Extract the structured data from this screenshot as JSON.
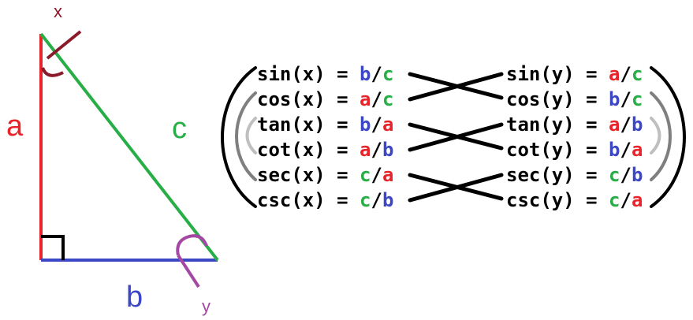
{
  "triangle": {
    "angle_x_label": "x",
    "angle_y_label": "y",
    "side_a_label": "a",
    "side_b_label": "b",
    "side_c_label": "c"
  },
  "colors": {
    "a": "#e8232a",
    "b": "#3c47c6",
    "c": "#27ae46",
    "x": "#8b1a2b",
    "y": "#a349a4",
    "text": "#000000",
    "arc_inner": "#bfbfbf",
    "arc_mid": "#7f7f7f"
  },
  "equations": {
    "left": [
      {
        "fn": "sin(x) = ",
        "num": "b",
        "num_color": "b",
        "den": "c",
        "den_color": "c"
      },
      {
        "fn": "cos(x) = ",
        "num": "a",
        "num_color": "a",
        "den": "c",
        "den_color": "c"
      },
      {
        "fn": "tan(x) = ",
        "num": "b",
        "num_color": "b",
        "den": "a",
        "den_color": "a"
      },
      {
        "fn": "cot(x) = ",
        "num": "a",
        "num_color": "a",
        "den": "b",
        "den_color": "b"
      },
      {
        "fn": "sec(x) = ",
        "num": "c",
        "num_color": "c",
        "den": "a",
        "den_color": "a"
      },
      {
        "fn": "csc(x) = ",
        "num": "c",
        "num_color": "c",
        "den": "b",
        "den_color": "b"
      }
    ],
    "right": [
      {
        "fn": "sin(y) = ",
        "num": "a",
        "num_color": "a",
        "den": "c",
        "den_color": "c"
      },
      {
        "fn": "cos(y) = ",
        "num": "b",
        "num_color": "b",
        "den": "c",
        "den_color": "c"
      },
      {
        "fn": "tan(y) = ",
        "num": "a",
        "num_color": "a",
        "den": "b",
        "den_color": "b"
      },
      {
        "fn": "cot(y) = ",
        "num": "b",
        "num_color": "b",
        "den": "a",
        "den_color": "a"
      },
      {
        "fn": "sec(y) = ",
        "num": "c",
        "num_color": "c",
        "den": "b",
        "den_color": "b"
      },
      {
        "fn": "csc(y) = ",
        "num": "c",
        "num_color": "c",
        "den": "a",
        "den_color": "a"
      }
    ],
    "slash": "/"
  }
}
